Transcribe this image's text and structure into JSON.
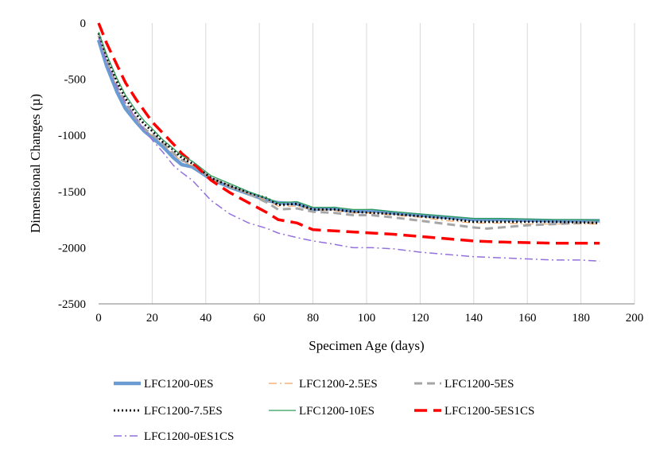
{
  "chart_data": {
    "type": "line",
    "title": "",
    "xlabel": "Specimen Age (days)",
    "ylabel": "Dimensional Changes (µ)",
    "xlim": [
      0,
      200
    ],
    "ylim": [
      -2500,
      0
    ],
    "xticks": [
      "0",
      "20",
      "40",
      "60",
      "80",
      "100",
      "120",
      "140",
      "160",
      "180",
      "200"
    ],
    "yticks": [
      "0",
      "-500",
      "-1000",
      "-1500",
      "-2000",
      "-2500"
    ],
    "grid": "vertical",
    "legend_position": "bottom",
    "series": [
      {
        "name": "LFC1200-0ES",
        "color": "#6A9BD3",
        "dash": "solid",
        "width": 4.5,
        "points": [
          [
            0,
            -150
          ],
          [
            3,
            -380
          ],
          [
            7,
            -620
          ],
          [
            10,
            -760
          ],
          [
            14,
            -880
          ],
          [
            17,
            -960
          ],
          [
            20,
            -1020
          ],
          [
            24,
            -1100
          ],
          [
            28,
            -1200
          ],
          [
            31,
            -1260
          ],
          [
            35,
            -1280
          ],
          [
            42,
            -1390
          ],
          [
            49,
            -1460
          ],
          [
            56,
            -1520
          ],
          [
            63,
            -1580
          ],
          [
            67,
            -1600
          ],
          [
            74,
            -1610
          ],
          [
            80,
            -1660
          ],
          [
            88,
            -1650
          ],
          [
            95,
            -1680
          ],
          [
            102,
            -1670
          ],
          [
            110,
            -1690
          ],
          [
            120,
            -1710
          ],
          [
            130,
            -1730
          ],
          [
            140,
            -1750
          ],
          [
            150,
            -1750
          ],
          [
            160,
            -1755
          ],
          [
            170,
            -1760
          ],
          [
            180,
            -1760
          ],
          [
            187,
            -1760
          ]
        ]
      },
      {
        "name": "LFC1200-2.5ES",
        "color": "#F4A460",
        "dash": "dashdot",
        "width": 1.2,
        "points": [
          [
            0,
            -120
          ],
          [
            3,
            -340
          ],
          [
            7,
            -580
          ],
          [
            10,
            -720
          ],
          [
            14,
            -860
          ],
          [
            17,
            -950
          ],
          [
            20,
            -1000
          ],
          [
            24,
            -1080
          ],
          [
            28,
            -1170
          ],
          [
            31,
            -1230
          ],
          [
            35,
            -1270
          ],
          [
            42,
            -1390
          ],
          [
            49,
            -1460
          ],
          [
            56,
            -1520
          ],
          [
            63,
            -1580
          ],
          [
            67,
            -1630
          ],
          [
            74,
            -1630
          ],
          [
            80,
            -1660
          ],
          [
            88,
            -1670
          ],
          [
            95,
            -1690
          ],
          [
            102,
            -1690
          ],
          [
            110,
            -1710
          ],
          [
            120,
            -1730
          ],
          [
            130,
            -1760
          ],
          [
            140,
            -1780
          ],
          [
            150,
            -1780
          ],
          [
            160,
            -1790
          ],
          [
            170,
            -1790
          ],
          [
            180,
            -1790
          ],
          [
            187,
            -1790
          ]
        ]
      },
      {
        "name": "LFC1200-5ES",
        "color": "#A6A6A6",
        "dash": "dash",
        "width": 3,
        "points": [
          [
            0,
            -110
          ],
          [
            3,
            -330
          ],
          [
            7,
            -570
          ],
          [
            10,
            -710
          ],
          [
            14,
            -850
          ],
          [
            17,
            -940
          ],
          [
            20,
            -990
          ],
          [
            24,
            -1070
          ],
          [
            28,
            -1160
          ],
          [
            31,
            -1220
          ],
          [
            35,
            -1260
          ],
          [
            42,
            -1380
          ],
          [
            49,
            -1450
          ],
          [
            56,
            -1520
          ],
          [
            63,
            -1600
          ],
          [
            67,
            -1660
          ],
          [
            74,
            -1650
          ],
          [
            80,
            -1680
          ],
          [
            88,
            -1690
          ],
          [
            95,
            -1710
          ],
          [
            102,
            -1710
          ],
          [
            110,
            -1730
          ],
          [
            120,
            -1760
          ],
          [
            130,
            -1790
          ],
          [
            140,
            -1820
          ],
          [
            145,
            -1830
          ],
          [
            150,
            -1820
          ],
          [
            160,
            -1800
          ],
          [
            170,
            -1790
          ],
          [
            180,
            -1780
          ],
          [
            187,
            -1770
          ]
        ]
      },
      {
        "name": "LFC1200-7.5ES",
        "color": "#000000",
        "dash": "dot",
        "width": 2.8,
        "points": [
          [
            0,
            -90
          ],
          [
            3,
            -300
          ],
          [
            7,
            -530
          ],
          [
            10,
            -670
          ],
          [
            14,
            -810
          ],
          [
            17,
            -900
          ],
          [
            20,
            -960
          ],
          [
            24,
            -1060
          ],
          [
            28,
            -1130
          ],
          [
            31,
            -1200
          ],
          [
            35,
            -1250
          ],
          [
            42,
            -1380
          ],
          [
            49,
            -1450
          ],
          [
            56,
            -1510
          ],
          [
            63,
            -1560
          ],
          [
            67,
            -1620
          ],
          [
            74,
            -1610
          ],
          [
            80,
            -1660
          ],
          [
            88,
            -1660
          ],
          [
            95,
            -1680
          ],
          [
            102,
            -1690
          ],
          [
            110,
            -1700
          ],
          [
            120,
            -1720
          ],
          [
            130,
            -1740
          ],
          [
            140,
            -1770
          ],
          [
            150,
            -1770
          ],
          [
            160,
            -1770
          ],
          [
            170,
            -1770
          ],
          [
            180,
            -1775
          ],
          [
            187,
            -1780
          ]
        ]
      },
      {
        "name": "LFC1200-10ES",
        "color": "#2E9E5B",
        "dash": "solid",
        "width": 1.3,
        "points": [
          [
            0,
            -80
          ],
          [
            3,
            -280
          ],
          [
            7,
            -500
          ],
          [
            10,
            -640
          ],
          [
            14,
            -780
          ],
          [
            17,
            -870
          ],
          [
            20,
            -940
          ],
          [
            24,
            -1040
          ],
          [
            28,
            -1120
          ],
          [
            31,
            -1180
          ],
          [
            35,
            -1230
          ],
          [
            42,
            -1360
          ],
          [
            49,
            -1430
          ],
          [
            56,
            -1500
          ],
          [
            63,
            -1560
          ],
          [
            67,
            -1600
          ],
          [
            74,
            -1590
          ],
          [
            80,
            -1640
          ],
          [
            88,
            -1640
          ],
          [
            95,
            -1660
          ],
          [
            102,
            -1660
          ],
          [
            110,
            -1680
          ],
          [
            120,
            -1700
          ],
          [
            130,
            -1720
          ],
          [
            140,
            -1740
          ],
          [
            150,
            -1740
          ],
          [
            160,
            -1745
          ],
          [
            170,
            -1750
          ],
          [
            180,
            -1750
          ],
          [
            187,
            -1755
          ]
        ]
      },
      {
        "name": "LFC1200-5ES1CS",
        "color": "#FF0000",
        "dash": "longdash",
        "width": 3.5,
        "points": [
          [
            0,
            0
          ],
          [
            3,
            -180
          ],
          [
            7,
            -380
          ],
          [
            10,
            -530
          ],
          [
            14,
            -680
          ],
          [
            17,
            -780
          ],
          [
            20,
            -880
          ],
          [
            24,
            -980
          ],
          [
            28,
            -1080
          ],
          [
            31,
            -1160
          ],
          [
            35,
            -1240
          ],
          [
            42,
            -1400
          ],
          [
            49,
            -1510
          ],
          [
            56,
            -1600
          ],
          [
            63,
            -1690
          ],
          [
            67,
            -1750
          ],
          [
            74,
            -1780
          ],
          [
            80,
            -1840
          ],
          [
            88,
            -1850
          ],
          [
            95,
            -1860
          ],
          [
            102,
            -1870
          ],
          [
            110,
            -1880
          ],
          [
            120,
            -1900
          ],
          [
            130,
            -1920
          ],
          [
            140,
            -1940
          ],
          [
            150,
            -1950
          ],
          [
            160,
            -1955
          ],
          [
            170,
            -1960
          ],
          [
            180,
            -1960
          ],
          [
            187,
            -1960
          ]
        ]
      },
      {
        "name": "LFC1200-0ES1CS",
        "color": "#9370DB",
        "dash": "dashdot",
        "width": 1.5,
        "points": [
          [
            0,
            -130
          ],
          [
            3,
            -350
          ],
          [
            7,
            -580
          ],
          [
            10,
            -710
          ],
          [
            14,
            -850
          ],
          [
            17,
            -950
          ],
          [
            20,
            -1040
          ],
          [
            24,
            -1150
          ],
          [
            28,
            -1270
          ],
          [
            31,
            -1330
          ],
          [
            35,
            -1400
          ],
          [
            42,
            -1580
          ],
          [
            49,
            -1700
          ],
          [
            56,
            -1780
          ],
          [
            63,
            -1830
          ],
          [
            67,
            -1870
          ],
          [
            74,
            -1910
          ],
          [
            80,
            -1940
          ],
          [
            88,
            -1970
          ],
          [
            95,
            -2000
          ],
          [
            102,
            -2000
          ],
          [
            110,
            -2010
          ],
          [
            120,
            -2040
          ],
          [
            130,
            -2060
          ],
          [
            140,
            -2080
          ],
          [
            150,
            -2090
          ],
          [
            160,
            -2100
          ],
          [
            170,
            -2110
          ],
          [
            180,
            -2110
          ],
          [
            187,
            -2120
          ]
        ]
      }
    ]
  }
}
